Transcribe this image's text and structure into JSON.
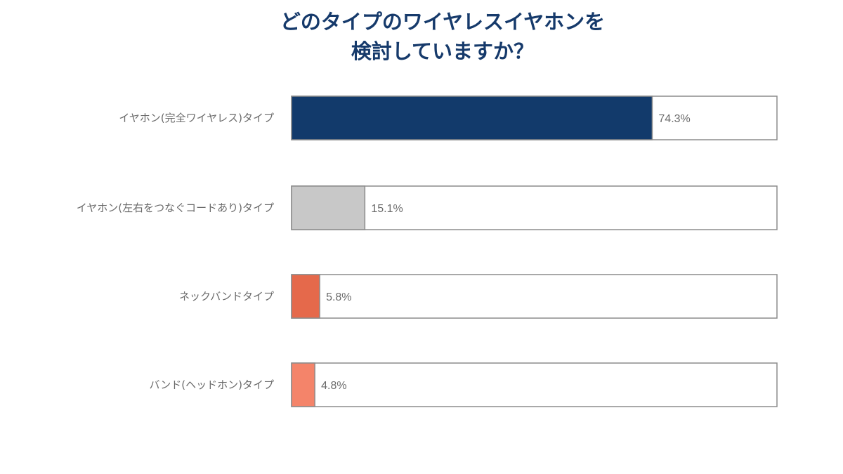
{
  "chart_data": {
    "type": "bar",
    "orientation": "horizontal",
    "title_lines": [
      "どのタイプのワイヤレスイヤホンを",
      "検討していますか？"
    ],
    "categories": [
      "イヤホン(完全ワイヤレス)タイプ",
      "イヤホン(左右をつなぐコードあり)タイプ",
      "ネックバンドタイプ",
      "バンド(ヘッドホン)タイプ"
    ],
    "values": [
      74.3,
      15.1,
      5.8,
      4.8
    ],
    "value_labels": [
      "74.3%",
      "15.1%",
      "5.8%",
      "4.8%"
    ],
    "unit": "%",
    "xlim": [
      0,
      100
    ],
    "colors": [
      "#123a6b",
      "#c8c8c8",
      "#e5694b",
      "#f4846a"
    ],
    "grid": false,
    "legend": "none"
  }
}
